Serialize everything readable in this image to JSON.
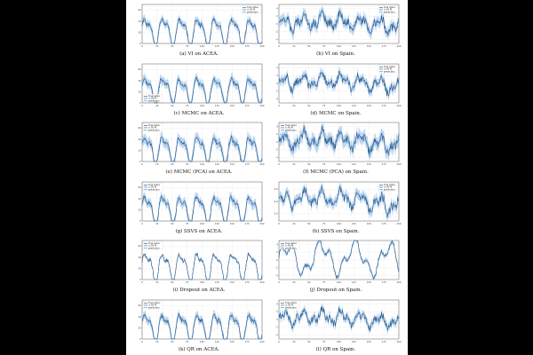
{
  "figure": {
    "colors": {
      "true": "#1f4e79",
      "pred": "#4f8fcf",
      "band": "#a9c8ea",
      "grid": "#e6e6e6"
    },
    "panels": [
      {
        "caption": "(a) VI on ACEA.",
        "dataset": "ACEA",
        "legend_pos": "top-right",
        "legend": [
          "true value",
          "± 95 PI",
          "prediction"
        ]
      },
      {
        "caption": "(b) VI on Spain.",
        "dataset": "Spain",
        "legend_pos": "top-right",
        "legend": [
          "true value",
          "± 95 PI",
          "prediction"
        ]
      },
      {
        "caption": "(c) MCMC on ACEA.",
        "dataset": "ACEA",
        "legend_pos": "bottom-left",
        "legend": [
          "true value",
          "± 95 PI",
          "prediction"
        ]
      },
      {
        "caption": "(d) MCMC on Spain.",
        "dataset": "Spain",
        "legend_pos": "top-right",
        "legend": [
          "true value",
          "± 95 PI",
          "prediction"
        ]
      },
      {
        "caption": "(e) MCMC (PCA) on ACEA.",
        "dataset": "ACEA",
        "legend_pos": "top-left",
        "legend": [
          "true value",
          "± 95 PI",
          "prediction"
        ]
      },
      {
        "caption": "(f) MCMC (PCA) on Spain.",
        "dataset": "Spain",
        "legend_pos": "top-left",
        "legend": [
          "true value",
          "± 95 PI",
          "prediction"
        ]
      },
      {
        "caption": "(g) SSVS on ACEA.",
        "dataset": "ACEA",
        "legend_pos": "top-left",
        "legend": [
          "true value",
          "± 95 PI",
          "prediction"
        ]
      },
      {
        "caption": "(h) SSVS on Spain.",
        "dataset": "Spain",
        "legend_pos": "top-right",
        "legend": [
          "true value",
          "± 95 PI",
          "prediction"
        ]
      },
      {
        "caption": "(i) Dropout on ACEA.",
        "dataset": "ACEA",
        "legend_pos": "top-left",
        "legend": [
          "true value",
          "± 95 PI",
          "prediction"
        ]
      },
      {
        "caption": "(j) Dropout on Spain.",
        "dataset": "Spain",
        "legend_pos": "top-left",
        "legend": [
          "true value",
          "± 95 PI",
          "prediction"
        ]
      },
      {
        "caption": "(k) QR on ACEA.",
        "dataset": "ACEA",
        "legend_pos": "top-left",
        "legend": [
          "true value",
          "± 95 PI",
          "prediction"
        ]
      },
      {
        "caption": "(l) QR on Spain.",
        "dataset": "Spain",
        "legend_pos": "top-left",
        "legend": [
          "true value",
          "± 95 PI",
          "prediction"
        ]
      }
    ]
  },
  "chart_data": [
    {
      "type": "line",
      "panel": "a",
      "x_ticks": [
        "0",
        "25",
        "50",
        "75",
        "100",
        "125",
        "150",
        "175",
        "200"
      ],
      "xlim": [
        0,
        200
      ],
      "y_ticks": [
        "0",
        "20",
        "40",
        "60"
      ],
      "ylim": [
        0,
        70
      ],
      "pattern": "periodic",
      "period": 29,
      "base": 22,
      "amp": 22,
      "band": 7,
      "seed": 1
    },
    {
      "type": "line",
      "panel": "b",
      "x_ticks": [
        "0",
        "25",
        "50",
        "75",
        "100",
        "125",
        "150",
        "175",
        "200"
      ],
      "xlim": [
        0,
        200
      ],
      "y_ticks": [
        "-4",
        "-2",
        "0",
        "2",
        "4"
      ],
      "ylim": [
        -5,
        5
      ],
      "pattern": "noisy",
      "base": 0,
      "amp": 2.6,
      "band": 1.3,
      "seed": 2
    },
    {
      "type": "line",
      "panel": "c",
      "x_ticks": [
        "0",
        "25",
        "50",
        "75",
        "100",
        "125",
        "150",
        "175",
        "200"
      ],
      "xlim": [
        0,
        200
      ],
      "y_ticks": [
        "0",
        "20",
        "40",
        "60"
      ],
      "ylim": [
        0,
        70
      ],
      "pattern": "periodic",
      "period": 29,
      "base": 24,
      "amp": 20,
      "band": 8,
      "seed": 3
    },
    {
      "type": "line",
      "panel": "d",
      "x_ticks": [
        "0",
        "25",
        "50",
        "75",
        "100",
        "125",
        "150",
        "175",
        "200"
      ],
      "xlim": [
        0,
        200
      ],
      "y_ticks": [
        "-4",
        "-2",
        "0",
        "2",
        "4"
      ],
      "ylim": [
        -5,
        5
      ],
      "pattern": "noisy",
      "base": 0,
      "amp": 2.4,
      "band": 1.1,
      "seed": 4
    },
    {
      "type": "line",
      "panel": "e",
      "x_ticks": [
        "0",
        "25",
        "50",
        "75",
        "100",
        "125",
        "150",
        "175",
        "200"
      ],
      "xlim": [
        0,
        200
      ],
      "y_ticks": [
        "0",
        "20",
        "40",
        "60"
      ],
      "ylim": [
        0,
        70
      ],
      "pattern": "periodic",
      "period": 29,
      "base": 22,
      "amp": 21,
      "band": 9,
      "seed": 5
    },
    {
      "type": "line",
      "panel": "f",
      "x_ticks": [
        "0",
        "25",
        "50",
        "75",
        "100",
        "125",
        "150",
        "175",
        "200"
      ],
      "xlim": [
        0,
        200
      ],
      "y_ticks": [
        "-4",
        "-2",
        "0",
        "2",
        "4"
      ],
      "ylim": [
        -5,
        5
      ],
      "pattern": "noisy",
      "base": 0,
      "amp": 2.7,
      "band": 1.6,
      "seed": 6
    },
    {
      "type": "line",
      "panel": "g",
      "x_ticks": [
        "0",
        "25",
        "50",
        "75",
        "100",
        "125",
        "150",
        "175",
        "200"
      ],
      "xlim": [
        0,
        200
      ],
      "y_ticks": [
        "0",
        "20",
        "40",
        "60"
      ],
      "ylim": [
        0,
        70
      ],
      "pattern": "periodic",
      "period": 29,
      "base": 22,
      "amp": 22,
      "band": 8,
      "seed": 7
    },
    {
      "type": "line",
      "panel": "h",
      "x_ticks": [
        "0",
        "25",
        "50",
        "75",
        "100",
        "125",
        "150",
        "175",
        "200"
      ],
      "xlim": [
        0,
        200
      ],
      "y_ticks": [
        "-2.5",
        "0.0",
        "2.5"
      ],
      "ylim": [
        -4,
        4
      ],
      "pattern": "noisy",
      "base": 0,
      "amp": 2.2,
      "band": 1.0,
      "seed": 8
    },
    {
      "type": "line",
      "panel": "i",
      "x_ticks": [
        "0",
        "25",
        "50",
        "75",
        "100",
        "125",
        "150",
        "175",
        "200"
      ],
      "xlim": [
        0,
        200
      ],
      "y_ticks": [
        "0",
        "20",
        "40",
        "60"
      ],
      "ylim": [
        0,
        70
      ],
      "pattern": "periodic",
      "period": 29,
      "base": 24,
      "amp": 22,
      "band": 3,
      "seed": 9
    },
    {
      "type": "line",
      "panel": "j",
      "x_ticks": [
        "0",
        "25",
        "50",
        "75",
        "100",
        "125",
        "150",
        "175",
        "200"
      ],
      "xlim": [
        0,
        200
      ],
      "y_ticks": [
        "-4",
        "-2",
        "0",
        "2",
        "4"
      ],
      "ylim": [
        -5,
        5
      ],
      "pattern": "dropout",
      "base": 0,
      "amp": 3.4,
      "band": 0.6,
      "seed": 10
    },
    {
      "type": "line",
      "panel": "k",
      "x_ticks": [
        "0",
        "25",
        "50",
        "75",
        "100",
        "125",
        "150",
        "175",
        "200"
      ],
      "xlim": [
        0,
        200
      ],
      "y_ticks": [
        "0",
        "20",
        "40",
        "60"
      ],
      "ylim": [
        0,
        70
      ],
      "pattern": "periodic",
      "period": 29,
      "base": 22,
      "amp": 22,
      "band": 7,
      "seed": 11
    },
    {
      "type": "line",
      "panel": "l",
      "x_ticks": [
        "0",
        "25",
        "50",
        "75",
        "100",
        "125",
        "150",
        "175",
        "200"
      ],
      "xlim": [
        0,
        200
      ],
      "y_ticks": [
        "-4",
        "-2",
        "0",
        "2",
        "4"
      ],
      "ylim": [
        -5,
        5
      ],
      "pattern": "noisy",
      "base": 0,
      "amp": 2.4,
      "band": 1.0,
      "seed": 12
    }
  ]
}
